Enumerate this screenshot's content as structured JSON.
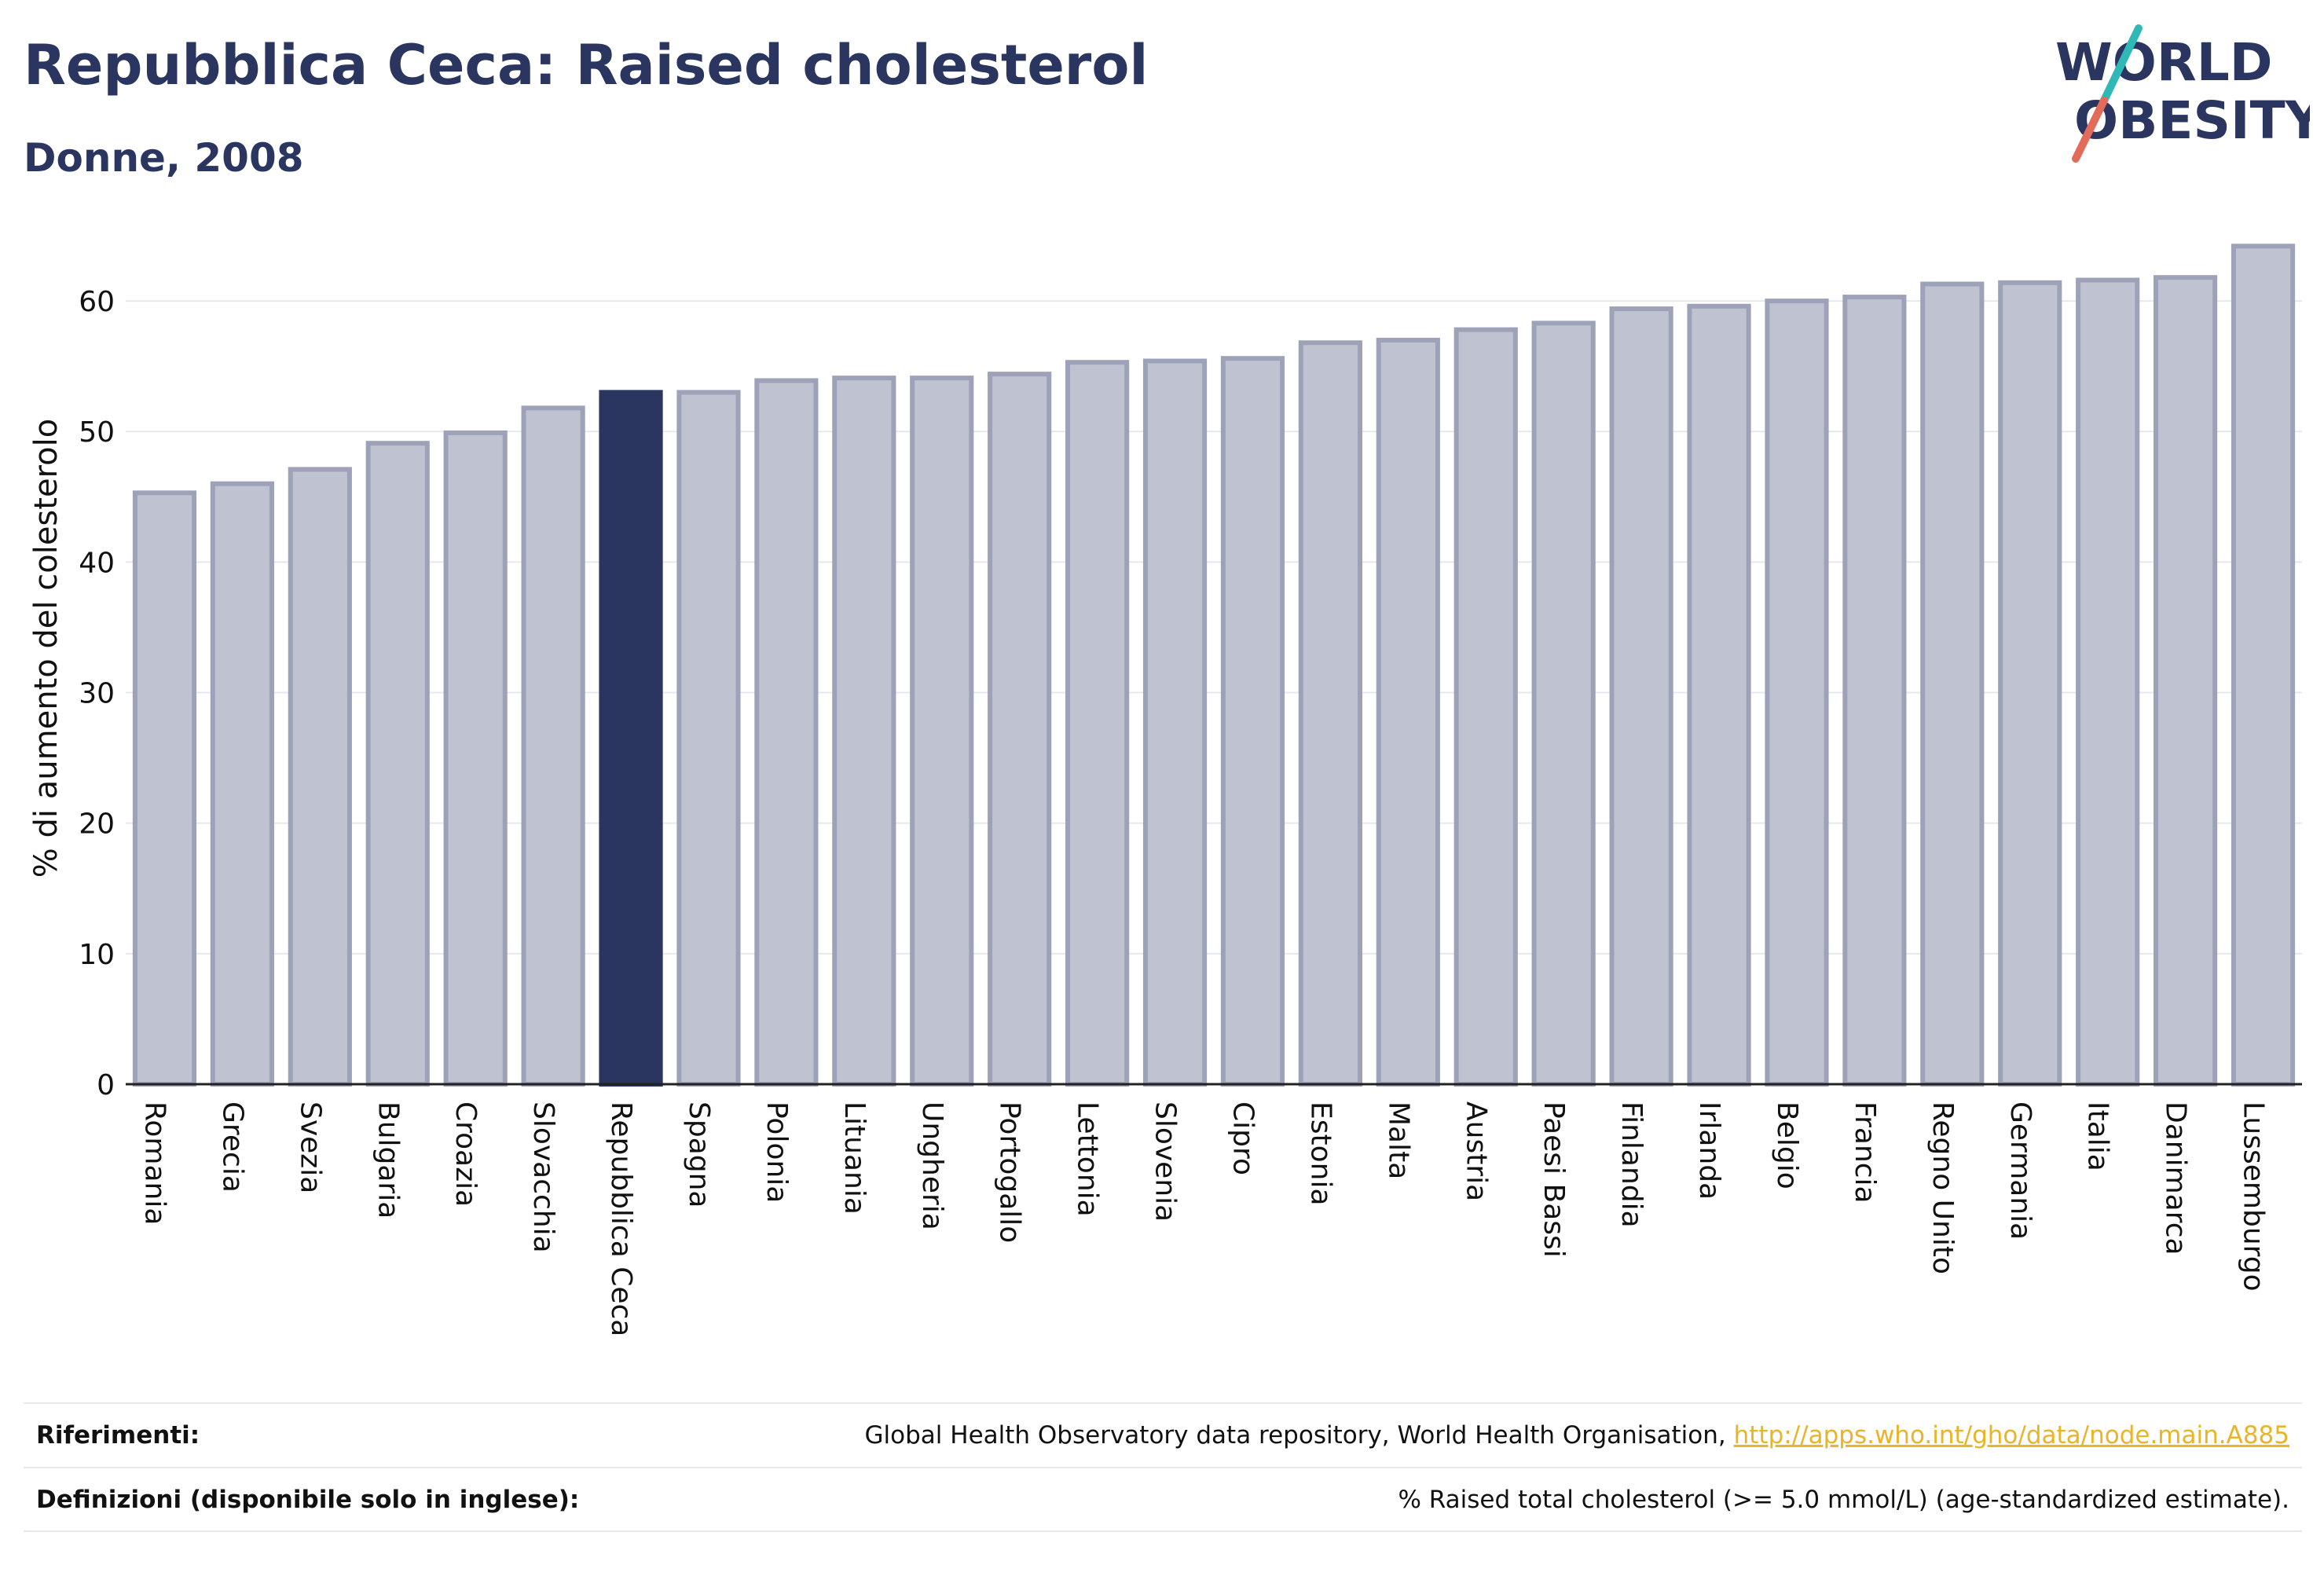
{
  "header": {
    "title": "Repubblica Ceca: Raised cholesterol",
    "subtitle": "Donne, 2008"
  },
  "logo": {
    "line1": "WORLD",
    "line2": "OBESITY"
  },
  "colors": {
    "primary": "#2a3560",
    "bar_default": "#bfc2d0",
    "bar_border": "#9ea2b8",
    "highlight": "#2a3560",
    "link": "#e8b428",
    "logo_teal": "#2fb8b6",
    "logo_coral": "#e36b5a"
  },
  "chart_data": {
    "type": "bar",
    "ylabel": "% di aumento del colesterolo",
    "xlabel": "",
    "ylim": [
      0,
      65
    ],
    "yticks": [
      0,
      10,
      20,
      30,
      40,
      50,
      60
    ],
    "grid": true,
    "highlight": "Repubblica Ceca",
    "categories": [
      "Romania",
      "Grecia",
      "Svezia",
      "Bulgaria",
      "Croazia",
      "Slovacchia",
      "Repubblica Ceca",
      "Spagna",
      "Polonia",
      "Lituania",
      "Ungheria",
      "Portogallo",
      "Lettonia",
      "Slovenia",
      "Cipro",
      "Estonia",
      "Malta",
      "Austria",
      "Paesi Bassi",
      "Finlandia",
      "Irlanda",
      "Belgio",
      "Francia",
      "Regno Unito",
      "Germania",
      "Italia",
      "Danimarca",
      "Lussemburgo"
    ],
    "values": [
      45.3,
      46.0,
      47.1,
      49.1,
      49.9,
      51.8,
      53.0,
      53.0,
      53.9,
      54.1,
      54.1,
      54.4,
      55.3,
      55.4,
      55.6,
      56.8,
      57.0,
      57.8,
      58.3,
      59.4,
      59.6,
      60.0,
      60.3,
      61.3,
      61.4,
      61.6,
      61.8,
      64.2
    ]
  },
  "footer": {
    "references_label": "Riferimenti:",
    "references_text": "Global Health Observatory data repository, World Health Organisation, ",
    "references_link": "http://apps.who.int/gho/data/node.main.A885",
    "definitions_label": "Definizioni (disponibile solo in inglese):",
    "definitions_text": "% Raised total cholesterol (>= 5.0 mmol/L) (age-standardized estimate)."
  }
}
